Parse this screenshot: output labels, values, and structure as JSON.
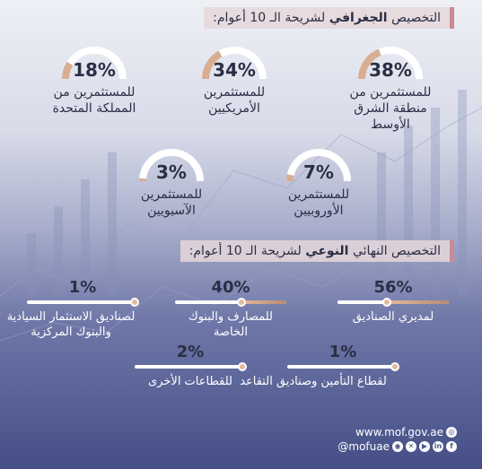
{
  "geo": {
    "title_prefix": "التخصيص",
    "title_bold": "الجغرافي",
    "title_suffix": "لشريحة الـ 10 أعوام:",
    "items": [
      {
        "pct": "38%",
        "value": 38,
        "label": "للمستثمرين من منطقة الشرق الأوسط"
      },
      {
        "pct": "34%",
        "value": 34,
        "label": "للمستثمرين الأمريكيين"
      },
      {
        "pct": "18%",
        "value": 18,
        "label": "للمستثمرين من المملكة المتحدة"
      },
      {
        "pct": "7%",
        "value": 7,
        "label": "للمستثمرين الأوروبيين"
      },
      {
        "pct": "3%",
        "value": 3,
        "label": "للمستثمرين الآسيويين"
      }
    ]
  },
  "type": {
    "title_prefix": "التخصيص النهائي",
    "title_bold": "النوعي",
    "title_suffix": "لشريحة الـ 10 أعوام:",
    "items": [
      {
        "pct": "56%",
        "value": 56,
        "label": "لمديري الصناديق"
      },
      {
        "pct": "40%",
        "value": 40,
        "label": "للمصارف والبنوك الخاصة"
      },
      {
        "pct": "1%",
        "value": 1,
        "label": "لصناديق الاستثمار السيادية والبنوك المركزية"
      },
      {
        "pct": "1%",
        "value": 1,
        "label": "لقطاع التأمين وصناديق التقاعد"
      },
      {
        "pct": "2%",
        "value": 2,
        "label": "للقطاعات الأخرى"
      }
    ]
  },
  "footer": {
    "website": "www.mof.gov.ae",
    "handle": "@mofuae"
  },
  "colors": {
    "accent": "#c98b93",
    "gauge_fill": "#d8ae92",
    "gauge_track": "#ffffff",
    "text_dark": "#2a2f45"
  }
}
